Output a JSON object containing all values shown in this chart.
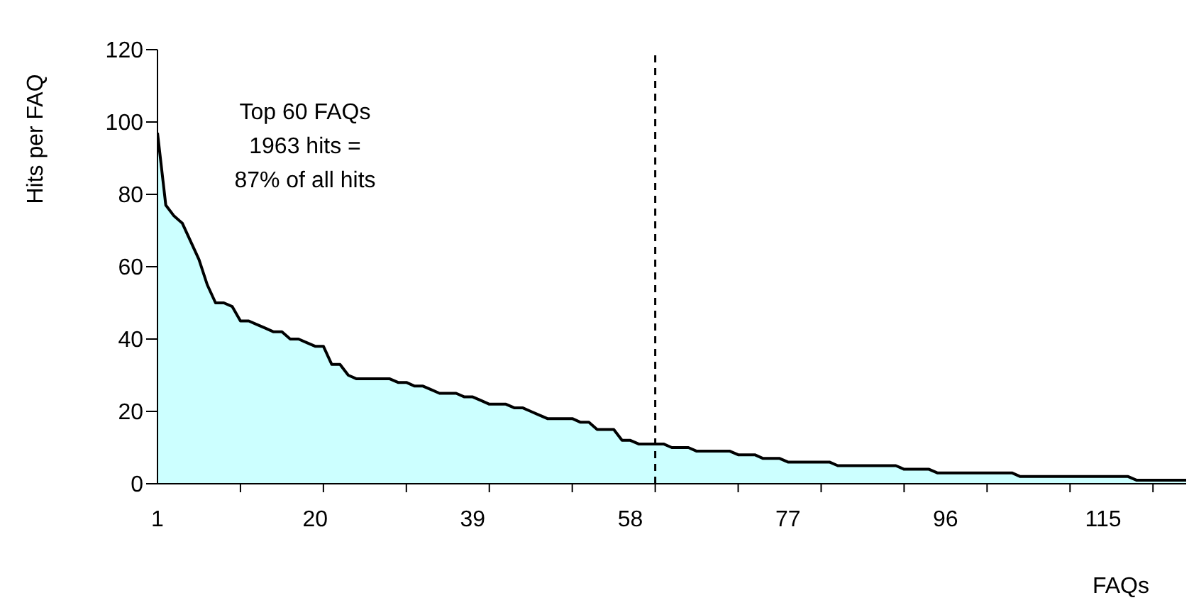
{
  "chart_data": {
    "type": "area",
    "xlabel": "FAQs",
    "ylabel": "Hits per FAQ",
    "annotations": [
      "Top 60 FAQs\n1963 hits =\n87% of all hits"
    ],
    "x": [
      1,
      2,
      3,
      4,
      5,
      6,
      7,
      8,
      9,
      10,
      11,
      12,
      13,
      14,
      15,
      16,
      17,
      18,
      19,
      20,
      21,
      22,
      23,
      24,
      25,
      26,
      27,
      28,
      29,
      30,
      31,
      32,
      33,
      34,
      35,
      36,
      37,
      38,
      39,
      40,
      41,
      42,
      43,
      44,
      45,
      46,
      47,
      48,
      49,
      50,
      51,
      52,
      53,
      54,
      55,
      56,
      57,
      58,
      59,
      60,
      61,
      62,
      63,
      64,
      65,
      66,
      67,
      68,
      69,
      70,
      71,
      72,
      73,
      74,
      75,
      76,
      77,
      78,
      79,
      80,
      81,
      82,
      83,
      84,
      85,
      86,
      87,
      88,
      89,
      90,
      91,
      92,
      93,
      94,
      95,
      96,
      97,
      98,
      99,
      100,
      101,
      102,
      103,
      104,
      105,
      106,
      107,
      108,
      109,
      110,
      111,
      112,
      113,
      114,
      115,
      116,
      117,
      118,
      119,
      120,
      121,
      122,
      123,
      124,
      125
    ],
    "series": [
      {
        "color": "#ccffff",
        "values": [
          97,
          77,
          74,
          72,
          67,
          62,
          55,
          50,
          50,
          49,
          45,
          45,
          44,
          43,
          42,
          42,
          40,
          40,
          39,
          38,
          38,
          33,
          33,
          30,
          29,
          29,
          29,
          29,
          29,
          28,
          28,
          27,
          27,
          26,
          25,
          25,
          25,
          24,
          24,
          23,
          22,
          22,
          22,
          21,
          21,
          20,
          19,
          18,
          18,
          18,
          18,
          17,
          17,
          15,
          15,
          15,
          12,
          12,
          11,
          11,
          11,
          11,
          10,
          10,
          10,
          9,
          9,
          9,
          9,
          9,
          8,
          8,
          8,
          7,
          7,
          7,
          6,
          6,
          6,
          6,
          6,
          6,
          5,
          5,
          5,
          5,
          5,
          5,
          5,
          5,
          4,
          4,
          4,
          4,
          3,
          3,
          3,
          3,
          3,
          3,
          3,
          3,
          3,
          3,
          2,
          2,
          2,
          2,
          2,
          2,
          2,
          2,
          2,
          2,
          2,
          2,
          2,
          2,
          1,
          1,
          1,
          1,
          1,
          1,
          1
        ]
      }
    ],
    "xlim": [
      1,
      125
    ],
    "xticks": [
      1,
      {
        "value": 11,
        "label": null
      },
      20,
      {
        "value": 21,
        "label": null
      },
      {
        "value": 31,
        "label": null
      },
      39,
      {
        "value": 41,
        "label": null
      },
      {
        "value": 51,
        "label": null
      },
      58,
      {
        "value": 61,
        "label": null
      },
      {
        "value": 71,
        "label": null
      },
      77,
      {
        "value": 81,
        "label": null
      },
      {
        "value": 91,
        "label": null
      },
      96,
      {
        "value": 101,
        "label": null
      },
      {
        "value": 111,
        "label": null
      },
      115,
      {
        "value": 121,
        "label": null
      }
    ],
    "ylim": [
      0,
      120
    ],
    "yticks": [
      0,
      20,
      40,
      60,
      80,
      100,
      120
    ],
    "ref_lines": [
      {
        "axis": "x",
        "value": 61,
        "line_style": "dashed"
      }
    ],
    "grid": false,
    "legend": false
  }
}
